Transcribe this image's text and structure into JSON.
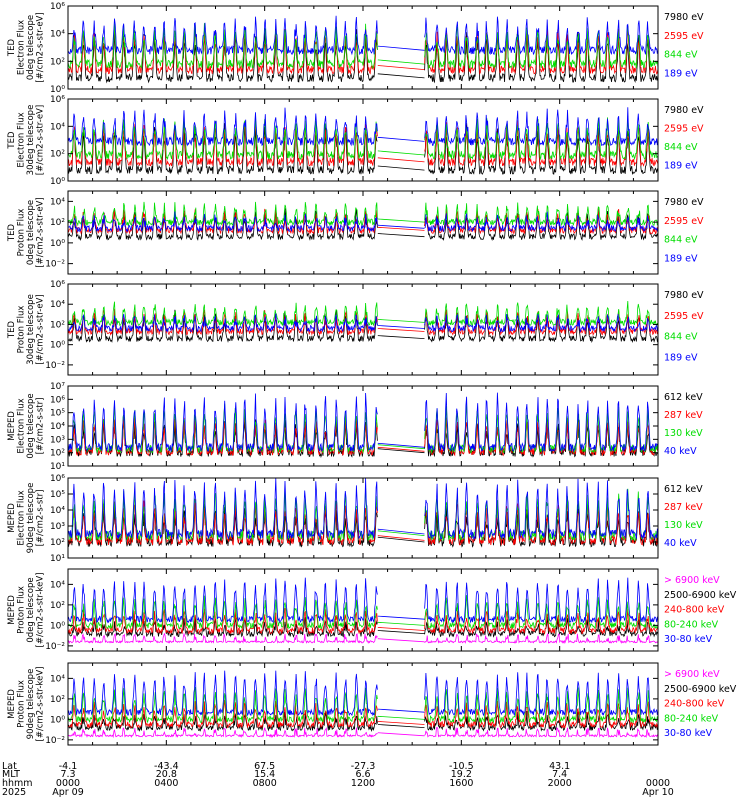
{
  "chart_data": {
    "type": "line",
    "panels": [
      {
        "ylabel": [
          "TED",
          "Electron Flux",
          "0deg telescope",
          "[#/cm2-s-str-eV]"
        ],
        "yticks": [
          "10⁰",
          "10²",
          "10⁴",
          "10⁶"
        ],
        "ylim_exp": [
          0,
          6
        ],
        "series": [
          {
            "name": "7980 eV",
            "color": "#000000",
            "base": 0.8,
            "amp": 3.0
          },
          {
            "name": "2595 eV",
            "color": "#ff0000",
            "base": 1.4,
            "amp": 2.6
          },
          {
            "name": "844 eV",
            "color": "#00dd00",
            "base": 1.8,
            "amp": 2.4
          },
          {
            "name": "189 eV",
            "color": "#0000ff",
            "base": 2.8,
            "amp": 2.0
          }
        ]
      },
      {
        "ylabel": [
          "TED",
          "Electron Flux",
          "30deg telescope",
          "[#/cm2-s-str-eV]"
        ],
        "yticks": [
          "10⁰",
          "10²",
          "10⁴",
          "10⁶"
        ],
        "ylim_exp": [
          0,
          6
        ],
        "series": [
          {
            "name": "7980 eV",
            "color": "#000000",
            "base": 0.8,
            "amp": 3.0
          },
          {
            "name": "2595 eV",
            "color": "#ff0000",
            "base": 1.4,
            "amp": 2.5
          },
          {
            "name": "844 eV",
            "color": "#00dd00",
            "base": 1.9,
            "amp": 2.3
          },
          {
            "name": "189 eV",
            "color": "#0000ff",
            "base": 2.9,
            "amp": 1.9
          }
        ]
      },
      {
        "ylabel": [
          "TED",
          "Proton Flux",
          "0deg telescope",
          "[#/cm2-s-str-eV]"
        ],
        "yticks": [
          "10⁻²",
          "10⁰",
          "10²",
          "10⁴"
        ],
        "ylim_exp": [
          -3,
          5
        ],
        "series": [
          {
            "name": "7980 eV",
            "color": "#000000",
            "base": 0.6,
            "amp": 2.2
          },
          {
            "name": "2595 eV",
            "color": "#ff0000",
            "base": 1.2,
            "amp": 1.6
          },
          {
            "name": "844 eV",
            "color": "#00dd00",
            "base": 2.0,
            "amp": 1.4
          },
          {
            "name": "189 eV",
            "color": "#0000ff",
            "base": 1.4,
            "amp": 1.0
          }
        ]
      },
      {
        "ylabel": [
          "TED",
          "Proton Flux",
          "30deg telescope",
          "[#/cm2-s-str-eV]"
        ],
        "yticks": [
          "10⁻²",
          "10⁰",
          "10²",
          "10⁴",
          "10⁶"
        ],
        "ylim_exp": [
          -3,
          6
        ],
        "series": [
          {
            "name": "7980 eV",
            "color": "#000000",
            "base": 0.6,
            "amp": 2.3
          },
          {
            "name": "2595 eV",
            "color": "#ff0000",
            "base": 1.3,
            "amp": 1.7
          },
          {
            "name": "844 eV",
            "color": "#00dd00",
            "base": 2.2,
            "amp": 1.5
          },
          {
            "name": "189 eV",
            "color": "#0000ff",
            "base": 1.6,
            "amp": 1.0
          }
        ]
      },
      {
        "ylabel": [
          "MEPED",
          "Electron Flux",
          "0deg telescope",
          "[#/cm2-s-str]"
        ],
        "yticks": [
          "10¹",
          "10²",
          "10³",
          "10⁴",
          "10⁵",
          "10⁶",
          "10⁷"
        ],
        "ylim_exp": [
          1,
          7
        ],
        "series": [
          {
            "name": "612 keV",
            "color": "#000000",
            "base": 2.0,
            "amp": 2.0
          },
          {
            "name": "287 keV",
            "color": "#ff0000",
            "base": 2.1,
            "amp": 2.2
          },
          {
            "name": "130 keV",
            "color": "#00dd00",
            "base": 2.3,
            "amp": 2.8
          },
          {
            "name": "40 keV",
            "color": "#0000ff",
            "base": 2.4,
            "amp": 3.6
          }
        ]
      },
      {
        "ylabel": [
          "MEPED",
          "Electron Flux",
          "90deg telescope",
          "[#/cm2-s-str]"
        ],
        "yticks": [
          "10¹",
          "10²",
          "10³",
          "10⁴",
          "10⁵",
          "10⁶"
        ],
        "ylim_exp": [
          1,
          6
        ],
        "series": [
          {
            "name": "612 keV",
            "color": "#000000",
            "base": 2.0,
            "amp": 1.8
          },
          {
            "name": "287 keV",
            "color": "#ff0000",
            "base": 2.1,
            "amp": 2.0
          },
          {
            "name": "130 keV",
            "color": "#00dd00",
            "base": 2.4,
            "amp": 2.4
          },
          {
            "name": "40 keV",
            "color": "#0000ff",
            "base": 2.5,
            "amp": 3.0
          }
        ]
      },
      {
        "ylabel": [
          "MEPED",
          "Proton Flux",
          "0deg telescope",
          "[#/cm2-s-str-keV]"
        ],
        "yticks": [
          "10⁻²",
          "10⁰",
          "10²",
          "10⁴"
        ],
        "ylim_exp": [
          -2.5,
          5.5
        ],
        "series": [
          {
            "name": "> 6900 keV",
            "color": "#ff00ff",
            "base": -1.6,
            "amp": 0.5
          },
          {
            "name": "2500-6900 keV",
            "color": "#000000",
            "base": -0.8,
            "amp": 1.0
          },
          {
            "name": "240-800 keV",
            "color": "#ff0000",
            "base": -0.5,
            "amp": 1.6
          },
          {
            "name": "80-240 keV",
            "color": "#00dd00",
            "base": 0.0,
            "amp": 2.4
          },
          {
            "name": "30-80 keV",
            "color": "#0000ff",
            "base": 0.6,
            "amp": 3.6
          }
        ]
      },
      {
        "ylabel": [
          "MEPED",
          "Proton Flux",
          "90deg telescope",
          "[#/cm2-s-str-keV]"
        ],
        "yticks": [
          "10⁻²",
          "10⁰",
          "10²",
          "10⁴"
        ],
        "ylim_exp": [
          -2.5,
          5.5
        ],
        "series": [
          {
            "name": "> 6900 keV",
            "color": "#ff00ff",
            "base": -1.6,
            "amp": 0.5
          },
          {
            "name": "2500-6900 keV",
            "color": "#000000",
            "base": -0.8,
            "amp": 1.0
          },
          {
            "name": "240-800 keV",
            "color": "#ff0000",
            "base": -0.5,
            "amp": 1.8
          },
          {
            "name": "80-240 keV",
            "color": "#00dd00",
            "base": 0.0,
            "amp": 2.6
          },
          {
            "name": "30-80 keV",
            "color": "#0000ff",
            "base": 0.7,
            "amp": 3.6
          }
        ]
      }
    ],
    "x_axis": {
      "row_labels": [
        "Lat",
        "MLT",
        "hhmm",
        "2025"
      ],
      "xlim_hours": [
        0,
        24
      ],
      "gap_hours": [
        12.6,
        14.5
      ],
      "ticks": [
        {
          "hour": 0,
          "lat": "-4.1",
          "mlt": "7.3",
          "hhmm": "0000",
          "date": "Apr 09"
        },
        {
          "hour": 4,
          "lat": "-43.4",
          "mlt": "20.8",
          "hhmm": "0400",
          "date": ""
        },
        {
          "hour": 8,
          "lat": "67.5",
          "mlt": "15.4",
          "hhmm": "0800",
          "date": ""
        },
        {
          "hour": 12,
          "lat": "-27.3",
          "mlt": "6.6",
          "hhmm": "1200",
          "date": ""
        },
        {
          "hour": 16,
          "lat": "-10.5",
          "mlt": "19.2",
          "hhmm": "1600",
          "date": ""
        },
        {
          "hour": 20,
          "lat": "43.1",
          "mlt": "7.4",
          "hhmm": "2000",
          "date": ""
        },
        {
          "hour": 24,
          "lat": "",
          "mlt": "",
          "hhmm": "0000",
          "date": "Apr 10"
        }
      ]
    }
  }
}
